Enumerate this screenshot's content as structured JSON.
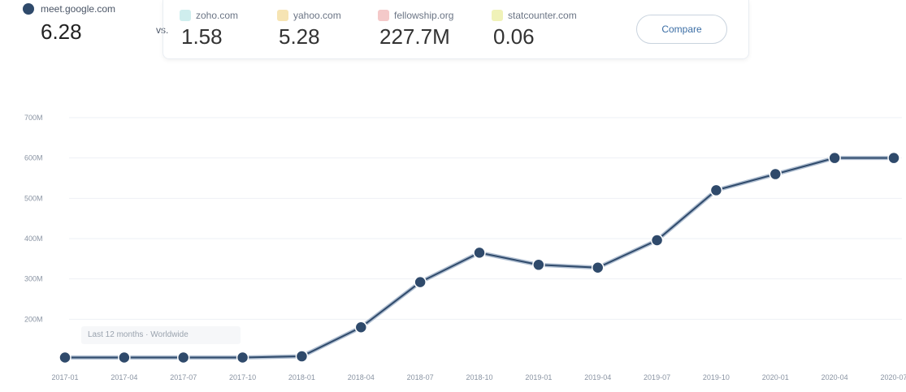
{
  "primary": {
    "domain": "meet.google.com",
    "value": "6.28",
    "color": "#2f4a6b"
  },
  "vs_label": "vs.",
  "competitors": [
    {
      "domain": "zoho.com",
      "value": "1.58",
      "color": "#cfeeee"
    },
    {
      "domain": "yahoo.com",
      "value": "5.28",
      "color": "#f6e4b3"
    },
    {
      "domain": "fellowship.org",
      "value": "227.7M",
      "color": "#f4c9c9"
    },
    {
      "domain": "statcounter.com",
      "value": "0.06",
      "color": "#f0f2b8"
    }
  ],
  "compare_button": "Compare",
  "hover_label": "Last 12 months · Worldwide",
  "chart_data": {
    "type": "line",
    "y_ticks": [
      "",
      "200M",
      "300M",
      "400M",
      "500M",
      "600M",
      "700M"
    ],
    "x_ticks": [
      "2017-01",
      "2017-04",
      "2017-07",
      "2017-10",
      "2018-01",
      "2018-04",
      "2018-07",
      "2018-10",
      "2019-01",
      "2019-04",
      "2019-07",
      "2019-10",
      "2020-01",
      "2020-04",
      "2020-07"
    ],
    "series": [
      {
        "color": "#2f4a6b",
        "values": [
          105,
          105,
          105,
          105,
          108,
          180,
          292,
          365,
          335,
          328,
          396,
          520,
          560,
          600,
          600
        ]
      }
    ],
    "ylim": [
      100,
      700
    ],
    "grid": true
  }
}
